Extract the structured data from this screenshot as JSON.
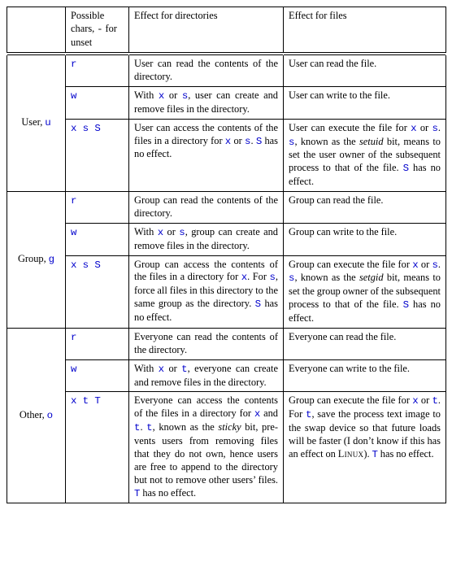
{
  "header": {
    "col1": "Possible chars,",
    "col1_unset_code": "-",
    "col1_unset_tail": "for unset",
    "col2": "Effect for directories",
    "col3": "Effect for files"
  },
  "sections": [
    {
      "label_pre": "User, ",
      "label_code": "u",
      "rows": [
        {
          "chars_html": [
            {
              "t": "code",
              "v": "r"
            }
          ],
          "dir_html": [
            {
              "t": "txt",
              "v": "User can read the contents of the directory."
            }
          ],
          "file_html": [
            {
              "t": "txt",
              "v": "User can read the file."
            }
          ]
        },
        {
          "chars_html": [
            {
              "t": "code",
              "v": "w"
            }
          ],
          "dir_html": [
            {
              "t": "txt",
              "v": "With "
            },
            {
              "t": "code",
              "v": "x"
            },
            {
              "t": "txt",
              "v": " or "
            },
            {
              "t": "code",
              "v": "s"
            },
            {
              "t": "txt",
              "v": ", user can create and remove files in the di­rectory."
            }
          ],
          "file_html": [
            {
              "t": "txt",
              "v": "User can write to the file."
            }
          ]
        },
        {
          "chars_html": [
            {
              "t": "code",
              "v": "x s S"
            }
          ],
          "dir_html": [
            {
              "t": "txt",
              "v": "User can access the contents of the files in a directory for "
            },
            {
              "t": "code",
              "v": "x"
            },
            {
              "t": "txt",
              "v": " or "
            },
            {
              "t": "code",
              "v": "s"
            },
            {
              "t": "txt",
              "v": ". "
            },
            {
              "t": "code",
              "v": "S"
            },
            {
              "t": "txt",
              "v": " has no effect."
            }
          ],
          "file_html": [
            {
              "t": "txt",
              "v": "User can execute the file for "
            },
            {
              "t": "code",
              "v": "x"
            },
            {
              "t": "txt",
              "v": " or "
            },
            {
              "t": "code",
              "v": "s"
            },
            {
              "t": "txt",
              "v": ".  "
            },
            {
              "t": "code",
              "v": "s"
            },
            {
              "t": "txt",
              "v": ", known as the "
            },
            {
              "t": "em",
              "v": "setuid"
            },
            {
              "t": "txt",
              "v": " bit, means to set the user owner of the subse­quent process to that of the file. "
            },
            {
              "t": "code",
              "v": "S"
            },
            {
              "t": "txt",
              "v": " has no effect."
            }
          ]
        }
      ]
    },
    {
      "label_pre": "Group, ",
      "label_code": "g",
      "rows": [
        {
          "chars_html": [
            {
              "t": "code",
              "v": "r"
            }
          ],
          "dir_html": [
            {
              "t": "txt",
              "v": "Group can read the contents of the directory."
            }
          ],
          "file_html": [
            {
              "t": "txt",
              "v": "Group can read the file."
            }
          ]
        },
        {
          "chars_html": [
            {
              "t": "code",
              "v": "w"
            }
          ],
          "dir_html": [
            {
              "t": "txt",
              "v": "With "
            },
            {
              "t": "code",
              "v": "x"
            },
            {
              "t": "txt",
              "v": " or "
            },
            {
              "t": "code",
              "v": "s"
            },
            {
              "t": "txt",
              "v": ", group can cre­ate and remove files in the directory."
            }
          ],
          "file_html": [
            {
              "t": "txt",
              "v": "Group can write to the file."
            }
          ]
        },
        {
          "chars_html": [
            {
              "t": "code",
              "v": "x s S"
            }
          ],
          "dir_html": [
            {
              "t": "txt",
              "v": "Group can access the con­tents of the files in a direc­tory for "
            },
            {
              "t": "code",
              "v": "x"
            },
            {
              "t": "txt",
              "v": ".  For "
            },
            {
              "t": "code",
              "v": "s"
            },
            {
              "t": "txt",
              "v": ", force all files in this directory to the same group as the directory. "
            },
            {
              "t": "code",
              "v": "S"
            },
            {
              "t": "txt",
              "v": " has no effect."
            }
          ],
          "file_html": [
            {
              "t": "txt",
              "v": "Group can execute the file for "
            },
            {
              "t": "code",
              "v": "x"
            },
            {
              "t": "txt",
              "v": " or "
            },
            {
              "t": "code",
              "v": "s"
            },
            {
              "t": "txt",
              "v": ". "
            },
            {
              "t": "code",
              "v": "s"
            },
            {
              "t": "txt",
              "v": ", known as the "
            },
            {
              "t": "em",
              "v": "setgid"
            },
            {
              "t": "txt",
              "v": " bit, means to set the group owner of the subse­quent process to that of the file. "
            },
            {
              "t": "code",
              "v": "S"
            },
            {
              "t": "txt",
              "v": " has no effect."
            }
          ]
        }
      ]
    },
    {
      "label_pre": "Other, ",
      "label_code": "o",
      "rows": [
        {
          "chars_html": [
            {
              "t": "code",
              "v": "r"
            }
          ],
          "dir_html": [
            {
              "t": "txt",
              "v": "Everyone can read the con­tents of the directory."
            }
          ],
          "file_html": [
            {
              "t": "txt",
              "v": "Everyone can read the file."
            }
          ]
        },
        {
          "chars_html": [
            {
              "t": "code",
              "v": "w"
            }
          ],
          "dir_html": [
            {
              "t": "txt",
              "v": "With "
            },
            {
              "t": "code",
              "v": "x"
            },
            {
              "t": "txt",
              "v": " or "
            },
            {
              "t": "code",
              "v": "t"
            },
            {
              "t": "txt",
              "v": ", everyone can create and remove files in the directory."
            }
          ],
          "file_html": [
            {
              "t": "txt",
              "v": "Everyone can write to the file."
            }
          ]
        },
        {
          "chars_html": [
            {
              "t": "code",
              "v": "x t T"
            }
          ],
          "dir_html": [
            {
              "t": "txt",
              "v": "Everyone can access the contents of the files in a di­rectory for "
            },
            {
              "t": "code",
              "v": "x"
            },
            {
              "t": "txt",
              "v": " and "
            },
            {
              "t": "code",
              "v": "t"
            },
            {
              "t": "txt",
              "v": ".  "
            },
            {
              "t": "code",
              "v": "t"
            },
            {
              "t": "txt",
              "v": ", known as the "
            },
            {
              "t": "em",
              "v": "sticky"
            },
            {
              "t": "txt",
              "v": " bit, pre­vents users from removing files that they do not own, hence users are free to ap­pend to the directory but not to remove other users’ files. "
            },
            {
              "t": "code",
              "v": "T"
            },
            {
              "t": "txt",
              "v": " has no effect."
            }
          ],
          "file_html": [
            {
              "t": "txt",
              "v": "Group can execute the file for "
            },
            {
              "t": "code",
              "v": "x"
            },
            {
              "t": "txt",
              "v": " or "
            },
            {
              "t": "code",
              "v": "t"
            },
            {
              "t": "txt",
              "v": ".  For "
            },
            {
              "t": "code",
              "v": "t"
            },
            {
              "t": "txt",
              "v": ", save the process text image to the swap device so that future loads will be faster (I don’t know if this has an effect on "
            },
            {
              "t": "sc",
              "v": "Linux"
            },
            {
              "t": "txt",
              "v": "). "
            },
            {
              "t": "code",
              "v": "T"
            },
            {
              "t": "txt",
              "v": " has no effect."
            }
          ]
        }
      ]
    }
  ]
}
